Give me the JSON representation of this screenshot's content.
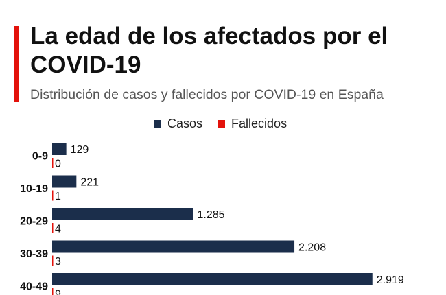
{
  "header": {
    "title": "La edad de los afectados por el COVID-19",
    "subtitle": "Distribución de casos y fallecidos por COVID-19 en España"
  },
  "colors": {
    "accent": "#e3120b",
    "casos": "#1b2e4b",
    "fallecidos": "#e3120b"
  },
  "chart_data": {
    "type": "bar",
    "orientation": "horizontal",
    "categories": [
      "0-9",
      "10-19",
      "20-29",
      "30-39",
      "40-49"
    ],
    "series": [
      {
        "name": "Casos",
        "values": [
          129,
          221,
          1285,
          2208,
          2919
        ],
        "labels": [
          "129",
          "221",
          "1.285",
          "2.208",
          "2.919"
        ]
      },
      {
        "name": "Fallecidos",
        "values": [
          0,
          1,
          4,
          3,
          9
        ],
        "labels": [
          "0",
          "1",
          "4",
          "3",
          "9"
        ]
      }
    ],
    "legend_position": "top",
    "grid": false
  }
}
